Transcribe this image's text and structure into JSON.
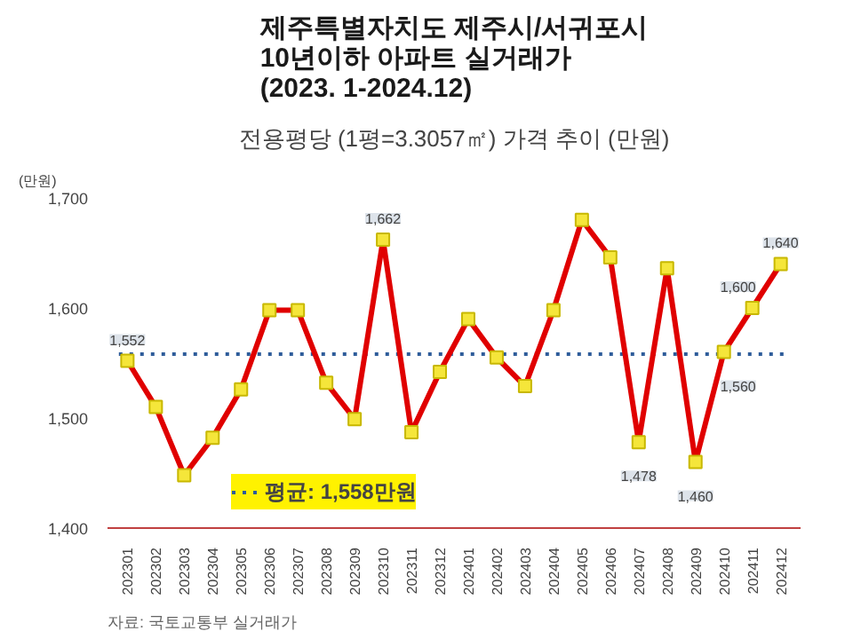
{
  "chart_data": {
    "type": "line",
    "title": "제주특별자치도 제주시/서귀포시\n10년이하 아파트 실거래가\n(2023. 1-2024.12)",
    "subtitle": "전용평당 (1평=3.3057㎡) 가격 추이 (만원)",
    "ylabel": "(만원)",
    "categories": [
      "202301",
      "202302",
      "202303",
      "202304",
      "202305",
      "202306",
      "202307",
      "202308",
      "202309",
      "202310",
      "202311",
      "202312",
      "202401",
      "202402",
      "202403",
      "202404",
      "202405",
      "202406",
      "202407",
      "202408",
      "202409",
      "202410",
      "202411",
      "202412"
    ],
    "series": [
      {
        "color": "#e00000",
        "values": [
          1552,
          1510,
          1448,
          1482,
          1526,
          1598,
          1598,
          1532,
          1499,
          1662,
          1487,
          1542,
          1590,
          1555,
          1529,
          1598,
          1680,
          1646,
          1478,
          1636,
          1460,
          1560,
          1600,
          1640
        ],
        "value_labels": [
          "1,552",
          null,
          null,
          null,
          null,
          null,
          null,
          null,
          null,
          "1,662",
          null,
          null,
          null,
          null,
          null,
          null,
          null,
          null,
          "1,478",
          null,
          "1,460",
          "1,560",
          "1,600",
          "1,640"
        ]
      }
    ],
    "marker": "square",
    "line_style": "solid",
    "ylim": [
      1400,
      1700
    ],
    "yticks": [
      {
        "value": 1400,
        "label": "1,400"
      },
      {
        "value": 1500,
        "label": "1,500"
      },
      {
        "value": 1600,
        "label": "1,600"
      },
      {
        "value": 1700,
        "label": "1,700"
      }
    ],
    "ref_lines": [
      {
        "axis": "y",
        "value": 1558,
        "label": "평균: 1,558만원",
        "color": "#2e5c9a",
        "line_style": "dotted"
      }
    ],
    "grid": false,
    "annotations": [
      "자료: 국토교통부 실거래가"
    ]
  }
}
